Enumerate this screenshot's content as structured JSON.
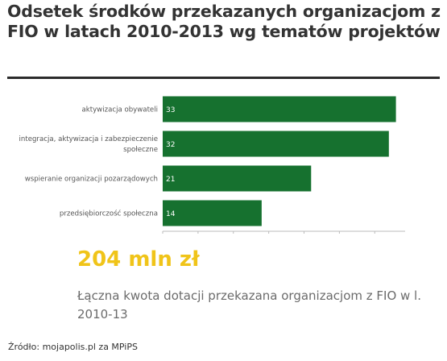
{
  "header": {
    "title": "Odsetek środków przekazanych organizacjom z FIO w latach 2010-2013 wg tematów projektów"
  },
  "chart_data": {
    "type": "bar",
    "orientation": "horizontal",
    "categories": [
      "aktywizacja obywateli",
      "integracja, aktywizacja i zabezpieczenie społeczne",
      "wspieranie organizacji pozarządowych",
      "przedsiębiorczość społeczna"
    ],
    "category_lines": [
      [
        "aktywizacja obywateli"
      ],
      [
        "integracja, aktywizacja i zabezpieczenie",
        "społeczne"
      ],
      [
        "wspieranie organizacji pozarządowych"
      ],
      [
        "przedsiębiorczość społeczna"
      ]
    ],
    "values": [
      33,
      32,
      21,
      14
    ],
    "data_labels": [
      "33",
      "32",
      "21",
      "14"
    ],
    "xlim": [
      0,
      34.3
    ],
    "xticks": [
      0,
      5,
      10,
      15,
      20,
      25,
      30
    ],
    "xlabel": "",
    "ylabel": "",
    "grid": false,
    "legend": "none",
    "bar_color": "#16712f",
    "label_color": "#ffffff"
  },
  "highlight": {
    "value": "204 mln zł",
    "color": "#f0c419"
  },
  "description": "Łączna kwota dotacji przekazana organizacjom z FIO w l. 2010-13",
  "footer": {
    "source": "Źródło: mojapolis.pl za MPiPS"
  }
}
